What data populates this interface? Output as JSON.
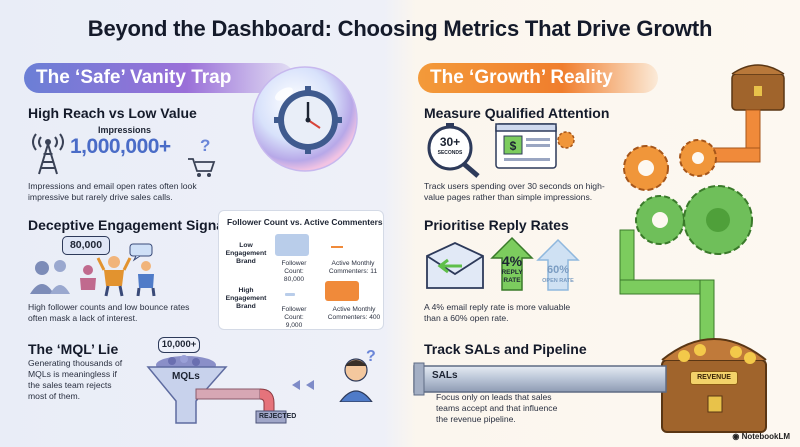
{
  "title": "Beyond the Dashboard: Choosing Metrics That Drive Growth",
  "left": {
    "banner": "The ‘Safe’ Vanity Trap",
    "reach": {
      "heading": "High Reach vs Low Value",
      "label": "Impressions",
      "value": "1,000,000+",
      "question": "?",
      "text": [
        "Impressions and email open rates often look",
        "impressive but rarely drive sales calls."
      ]
    },
    "engagement": {
      "heading": "Deceptive Engagement Signals",
      "bubble": "80,000",
      "text": [
        "High follower counts and low bounce rates",
        "often mask a lack of interest."
      ],
      "card": {
        "title": "Follower Count vs. Active Commenters",
        "rows": [
          {
            "brand": [
              "Low",
              "Engagement",
              "Brand"
            ],
            "follower": [
              "Follower Count:",
              "80,000"
            ],
            "active": [
              "Active Monthly",
              "Commenters: 11"
            ]
          },
          {
            "brand": [
              "High",
              "Engagement",
              "Brand"
            ],
            "follower": [
              "Follower Count:",
              "9,000"
            ],
            "active": [
              "Active Monthly",
              "Commenters: 400"
            ]
          }
        ]
      }
    },
    "mql": {
      "heading": "The ‘MQL’ Lie",
      "text": [
        "Generating thousands of",
        "MQLs is meaningless if",
        "the sales team rejects",
        "most of them."
      ],
      "bubble": "10,000+",
      "funnel_label": "MQLs",
      "rejected": "REJECTED",
      "question": "?"
    }
  },
  "right": {
    "banner": "The ‘Growth’ Reality",
    "attention": {
      "heading": "Measure Qualified Attention",
      "timer_value": "30+",
      "timer_unit": "SECONDS",
      "text": [
        "Track users spending over 30 seconds on high-",
        "value pages rather than simple impressions."
      ]
    },
    "reply": {
      "heading": "Prioritise Reply Rates",
      "reply_value": "4%",
      "reply_label": [
        "REPLY",
        "RATE"
      ],
      "open_value": "60%",
      "open_label": "OPEN RATE",
      "text": [
        "A 4% email reply rate is more valuable",
        "than a 60% open rate."
      ]
    },
    "pipeline": {
      "heading": "Track SALs and Pipeline",
      "pipe_label": "SALs",
      "revenue": "REVENUE",
      "text": [
        "Focus only on leads that sales",
        "teams accept and that influence",
        "the revenue pipeline."
      ]
    }
  },
  "footer": {
    "logo": "NotebookLM"
  },
  "colors": {
    "left_accent": "#6b7fd6",
    "right_accent": "#f07e2d",
    "reply_green": "#5fbf4a",
    "open_blue": "#8fb8de"
  }
}
